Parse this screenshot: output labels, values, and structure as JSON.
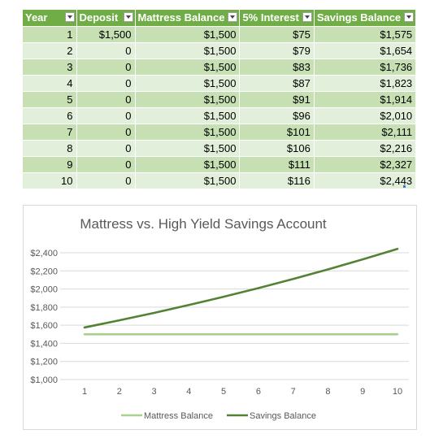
{
  "table": {
    "headers": [
      "Year",
      "Deposit",
      "Mattress Balance",
      "5% Interest",
      "Savings Balance"
    ],
    "rows": [
      [
        "1",
        "$1,500",
        "$1,500",
        "$75",
        "$1,575"
      ],
      [
        "2",
        "0",
        "$1,500",
        "$79",
        "$1,654"
      ],
      [
        "3",
        "0",
        "$1,500",
        "$83",
        "$1,736"
      ],
      [
        "4",
        "0",
        "$1,500",
        "$87",
        "$1,823"
      ],
      [
        "5",
        "0",
        "$1,500",
        "$91",
        "$1,914"
      ],
      [
        "6",
        "0",
        "$1,500",
        "$96",
        "$2,010"
      ],
      [
        "7",
        "0",
        "$1,500",
        "$101",
        "$2,111"
      ],
      [
        "8",
        "0",
        "$1,500",
        "$106",
        "$2,216"
      ],
      [
        "9",
        "0",
        "$1,500",
        "$111",
        "$2,327"
      ],
      [
        "10",
        "0",
        "$1,500",
        "$116",
        "$2,443"
      ]
    ]
  },
  "chart_data": {
    "type": "line",
    "title": "Mattress vs. High Yield Savings Account",
    "x": [
      1,
      2,
      3,
      4,
      5,
      6,
      7,
      8,
      9,
      10
    ],
    "x_tick_labels": [
      "1",
      "2",
      "3",
      "4",
      "5",
      "6",
      "7",
      "8",
      "9",
      "10"
    ],
    "ylim": [
      1000,
      2400
    ],
    "y_tick_labels": [
      "$1,000",
      "$1,200",
      "$1,400",
      "$1,600",
      "$1,800",
      "$2,000",
      "$2,200",
      "$2,400"
    ],
    "y_ticks": [
      1000,
      1200,
      1400,
      1600,
      1800,
      2000,
      2200,
      2400
    ],
    "grid": "horizontal",
    "legend_position": "bottom",
    "series": [
      {
        "name": "Mattress Balance",
        "color": "#a9d18e",
        "values": [
          1500,
          1500,
          1500,
          1500,
          1500,
          1500,
          1500,
          1500,
          1500,
          1500
        ]
      },
      {
        "name": "Savings Balance",
        "color": "#548235",
        "values": [
          1575,
          1654,
          1736,
          1823,
          1914,
          2010,
          2111,
          2216,
          2327,
          2443
        ]
      }
    ]
  }
}
